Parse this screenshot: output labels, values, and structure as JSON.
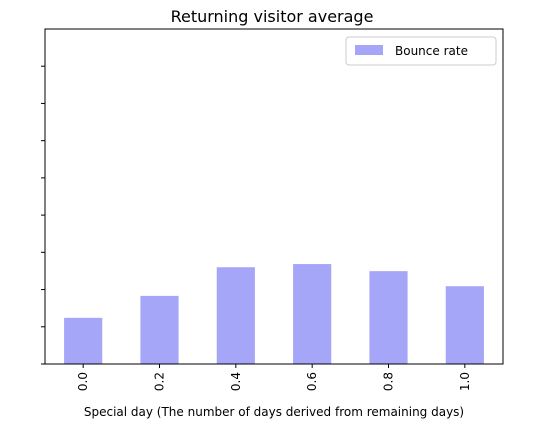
{
  "chart_data": {
    "type": "bar",
    "title": "Returning visitor average",
    "xlabel": "Special day (The number of days derived from remaining days)",
    "ylabel": "",
    "categories": [
      "0.0",
      "0.2",
      "0.4",
      "0.6",
      "0.8",
      "1.0"
    ],
    "series": [
      {
        "name": "Bounce rate",
        "values": [
          0.0248,
          0.0366,
          0.052,
          0.0537,
          0.0499,
          0.0418
        ]
      }
    ],
    "ylim": [
      0,
      0.18
    ],
    "yticks": [
      0,
      0.02,
      0.04,
      0.06,
      0.08,
      0.1,
      0.12,
      0.14,
      0.16
    ],
    "ytick_labels_visible": false,
    "grid": false,
    "legend_position": "top-right",
    "colors": {
      "bar": "#a6a6f8",
      "axis": "#000000",
      "legend_border": "#cccccc"
    }
  }
}
